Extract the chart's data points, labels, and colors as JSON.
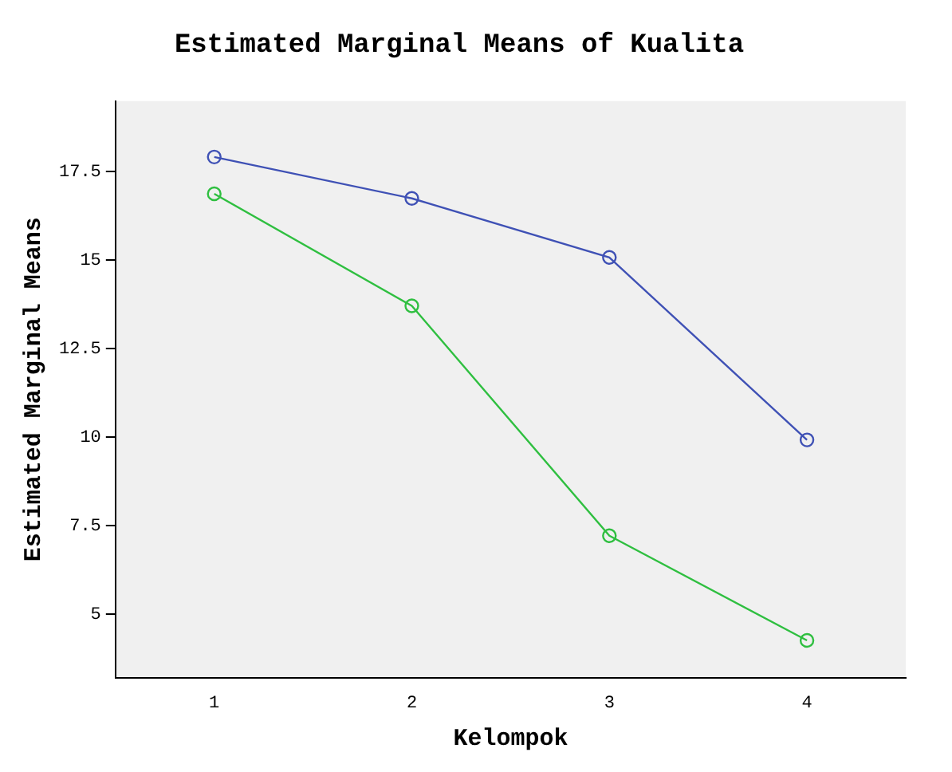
{
  "chart_data": {
    "type": "line",
    "title": "Estimated Marginal Means of Kualita",
    "xlabel": "Kelompok",
    "ylabel": "Estimated Marginal Means",
    "categories": [
      "1",
      "2",
      "3",
      "4"
    ],
    "series": [
      {
        "color": "#3f51b5",
        "values": [
          17.92,
          16.75,
          15.08,
          9.92
        ]
      },
      {
        "color": "#2fbf40",
        "values": [
          16.88,
          13.71,
          7.21,
          4.25
        ]
      }
    ],
    "ylim": [
      3.2,
      19.5
    ],
    "yticks": [
      5,
      7.5,
      10,
      12.5,
      15,
      17.5
    ],
    "grid": false,
    "legend": false,
    "marker": "circle",
    "line_style": "solid"
  }
}
